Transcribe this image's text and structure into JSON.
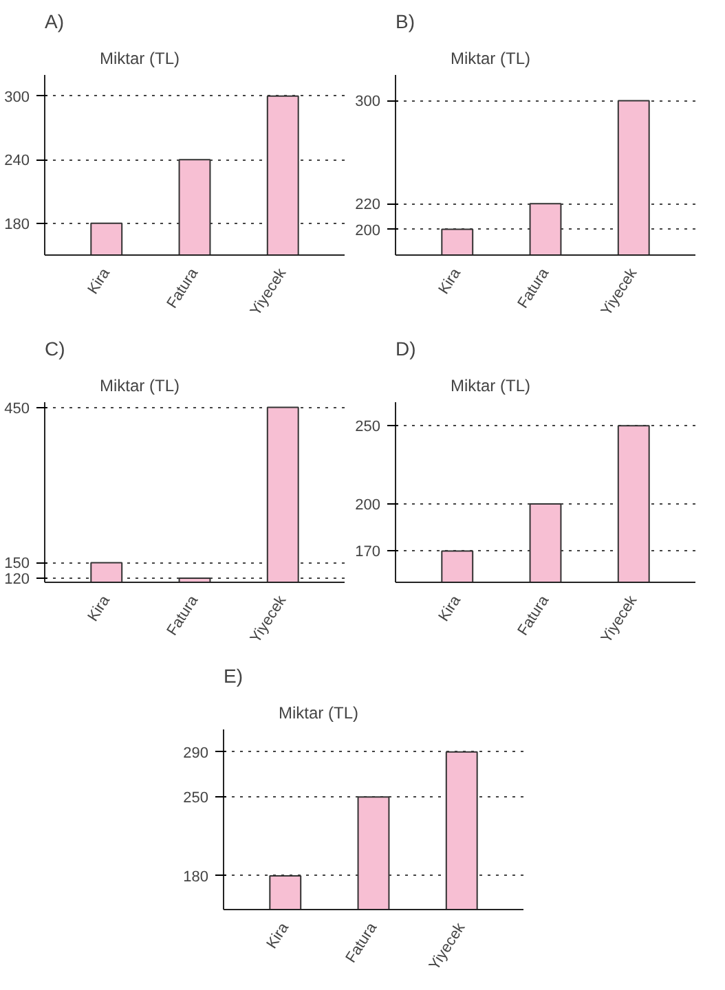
{
  "chart_data": [
    {
      "type": "bar",
      "title": "A)",
      "ylabel": "Miktar (TL)",
      "categories": [
        "Kira",
        "Fatura",
        "Yiyecek"
      ],
      "values": [
        180,
        240,
        300
      ],
      "color": "#f7bfd3",
      "ylim": [
        150,
        320
      ],
      "yticks": [
        180,
        240,
        300
      ],
      "grid": "y"
    },
    {
      "type": "bar",
      "title": "B)",
      "ylabel": "Miktar (TL)",
      "categories": [
        "Kira",
        "Fatura",
        "Yiyecek"
      ],
      "values": [
        200,
        220,
        300
      ],
      "color": "#f7bfd3",
      "ylim": [
        180,
        320
      ],
      "yticks": [
        200,
        220,
        300
      ],
      "grid": "y"
    },
    {
      "type": "bar",
      "title": "C)",
      "ylabel": "Miktar (TL)",
      "categories": [
        "Kira",
        "Fatura",
        "Yiyecek"
      ],
      "values": [
        150,
        120,
        450
      ],
      "color": "#f7bfd3",
      "ylim": [
        112,
        460
      ],
      "yticks": [
        120,
        150,
        450
      ],
      "grid": "y"
    },
    {
      "type": "bar",
      "title": "D)",
      "ylabel": "Miktar (TL)",
      "categories": [
        "Kira",
        "Fatura",
        "Yiyecek"
      ],
      "values": [
        170,
        200,
        250
      ],
      "color": "#f7bfd3",
      "ylim": [
        150,
        265
      ],
      "yticks": [
        170,
        200,
        250
      ],
      "grid": "y"
    },
    {
      "type": "bar",
      "title": "E)",
      "ylabel": "Miktar (TL)",
      "categories": [
        "Kira",
        "Fatura",
        "Yiyecek"
      ],
      "values": [
        180,
        250,
        290
      ],
      "color": "#f7bfd3",
      "ylim": [
        150,
        310
      ],
      "yticks": [
        180,
        250,
        290
      ],
      "grid": "y"
    }
  ]
}
